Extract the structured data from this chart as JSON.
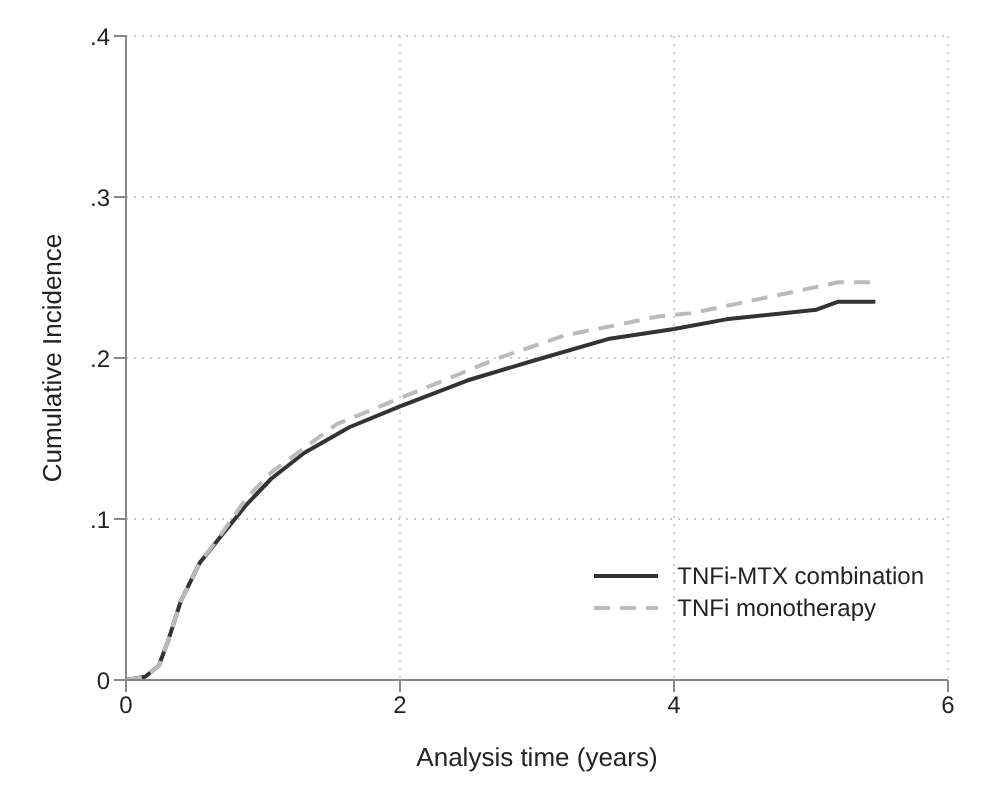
{
  "chart_data": {
    "type": "line",
    "xlabel": "Analysis time (years)",
    "ylabel": "Cumulative Incidence",
    "xlim": [
      0,
      6
    ],
    "xticks": [
      0,
      2,
      4,
      6
    ],
    "ylim": [
      0,
      0.4
    ],
    "yticks": [
      0,
      {
        "value": 0.1,
        "label": ".1"
      },
      {
        "value": 0.2,
        "label": ".2"
      },
      {
        "value": 0.3,
        "label": ".3"
      },
      {
        "value": 0.4,
        "label": ".4"
      }
    ],
    "grid": true,
    "legend": "bottom right",
    "marker": "none",
    "series": [
      {
        "name": "TNFi-MTX combination",
        "color": "#333333",
        "line_style": "solid",
        "x": [
          0,
          0.14,
          0.24,
          0.31,
          0.4,
          0.54,
          0.69,
          0.88,
          1.06,
          1.3,
          1.63,
          2,
          2.49,
          2.96,
          3.53,
          4,
          4.38,
          5.04,
          5.2,
          5.47
        ],
        "values": [
          0,
          0.002,
          0.009,
          0.025,
          0.049,
          0.073,
          0.089,
          0.109,
          0.125,
          0.141,
          0.157,
          0.17,
          0.186,
          0.198,
          0.212,
          0.218,
          0.224,
          0.23,
          0.235,
          0.235
        ]
      },
      {
        "name": "TNFi monotherapy",
        "color": "#bbbbbb",
        "line_style": "dashed",
        "x": [
          0,
          0.14,
          0.24,
          0.31,
          0.4,
          0.54,
          0.69,
          0.88,
          1.06,
          1.54,
          2,
          2.72,
          3.2,
          3.9,
          4.14,
          5.2,
          5.47
        ],
        "values": [
          0,
          0.002,
          0.009,
          0.025,
          0.049,
          0.073,
          0.09,
          0.113,
          0.129,
          0.159,
          0.175,
          0.2,
          0.214,
          0.226,
          0.228,
          0.247,
          0.247
        ]
      }
    ]
  }
}
